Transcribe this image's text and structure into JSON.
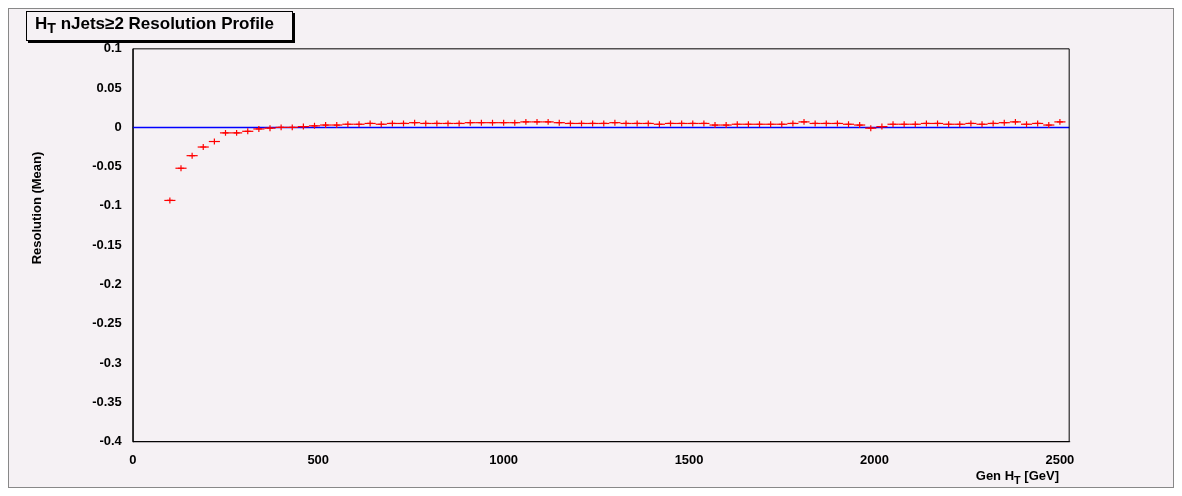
{
  "chart_data": {
    "type": "scatter",
    "title": "H$_{T}$ nJets≥2 Resolution Profile",
    "xlabel": "Gen H$_{T}$ [GeV]",
    "ylabel": "Resolution (Mean)",
    "x": [
      100,
      130,
      160,
      190,
      220,
      250,
      280,
      310,
      340,
      370,
      400,
      430,
      460,
      490,
      520,
      550,
      580,
      610,
      640,
      670,
      700,
      730,
      760,
      790,
      820,
      850,
      880,
      910,
      940,
      970,
      1000,
      1030,
      1060,
      1090,
      1120,
      1150,
      1180,
      1210,
      1240,
      1270,
      1300,
      1330,
      1360,
      1390,
      1420,
      1450,
      1480,
      1510,
      1540,
      1570,
      1600,
      1630,
      1660,
      1690,
      1720,
      1750,
      1780,
      1810,
      1840,
      1870,
      1900,
      1930,
      1960,
      1990,
      2020,
      2050,
      2080,
      2110,
      2140,
      2170,
      2200,
      2230,
      2260,
      2290,
      2320,
      2350,
      2380,
      2410,
      2440,
      2470,
      2500
    ],
    "series": [
      {
        "color": "#ff0000",
        "values": [
          -0.093,
          -0.052,
          -0.036,
          -0.025,
          -0.018,
          -0.007,
          -0.007,
          -0.005,
          -0.002,
          -0.001,
          0,
          0,
          0.001,
          0.002,
          0.003,
          0.003,
          0.004,
          0.004,
          0.005,
          0.004,
          0.005,
          0.005,
          0.006,
          0.005,
          0.005,
          0.005,
          0.005,
          0.006,
          0.006,
          0.006,
          0.006,
          0.006,
          0.007,
          0.007,
          0.007,
          0.006,
          0.005,
          0.005,
          0.005,
          0.005,
          0.006,
          0.005,
          0.005,
          0.005,
          0.004,
          0.005,
          0.005,
          0.005,
          0.005,
          0.003,
          0.003,
          0.004,
          0.004,
          0.004,
          0.004,
          0.004,
          0.005,
          0.007,
          0.005,
          0.005,
          0.005,
          0.004,
          0.003,
          -0.001,
          0.001,
          0.004,
          0.004,
          0.004,
          0.005,
          0.005,
          0.004,
          0.004,
          0.005,
          0.004,
          0.005,
          0.006,
          0.007,
          0.004,
          0.005,
          0.003,
          0.007
        ],
        "xerrors": [
          15,
          15,
          15,
          15,
          15,
          15,
          15,
          15,
          15,
          15,
          15,
          15,
          15,
          15,
          15,
          15,
          15,
          15,
          15,
          15,
          15,
          15,
          15,
          15,
          15,
          15,
          15,
          15,
          15,
          15,
          15,
          15,
          15,
          15,
          15,
          15,
          15,
          15,
          15,
          15,
          15,
          15,
          15,
          15,
          15,
          15,
          15,
          15,
          15,
          15,
          15,
          15,
          15,
          15,
          15,
          15,
          15,
          15,
          15,
          15,
          15,
          15,
          15,
          15,
          15,
          15,
          15,
          15,
          15,
          15,
          15,
          15,
          15,
          15,
          15,
          15,
          15,
          15,
          15,
          15,
          15
        ]
      }
    ],
    "ref_lines": [
      {
        "axis": "y",
        "value": 0,
        "color": "#0000ff"
      }
    ],
    "xlim": [
      0,
      2525
    ],
    "xticks": [
      0,
      500,
      1000,
      1500,
      2000,
      2500
    ],
    "ylim": [
      -0.4,
      0.1
    ],
    "yticks": [
      -0.4,
      -0.35,
      -0.3,
      -0.25,
      -0.2,
      -0.15,
      -0.1,
      -0.05,
      0,
      0.05,
      0.1
    ],
    "grid": false,
    "legend": false
  }
}
